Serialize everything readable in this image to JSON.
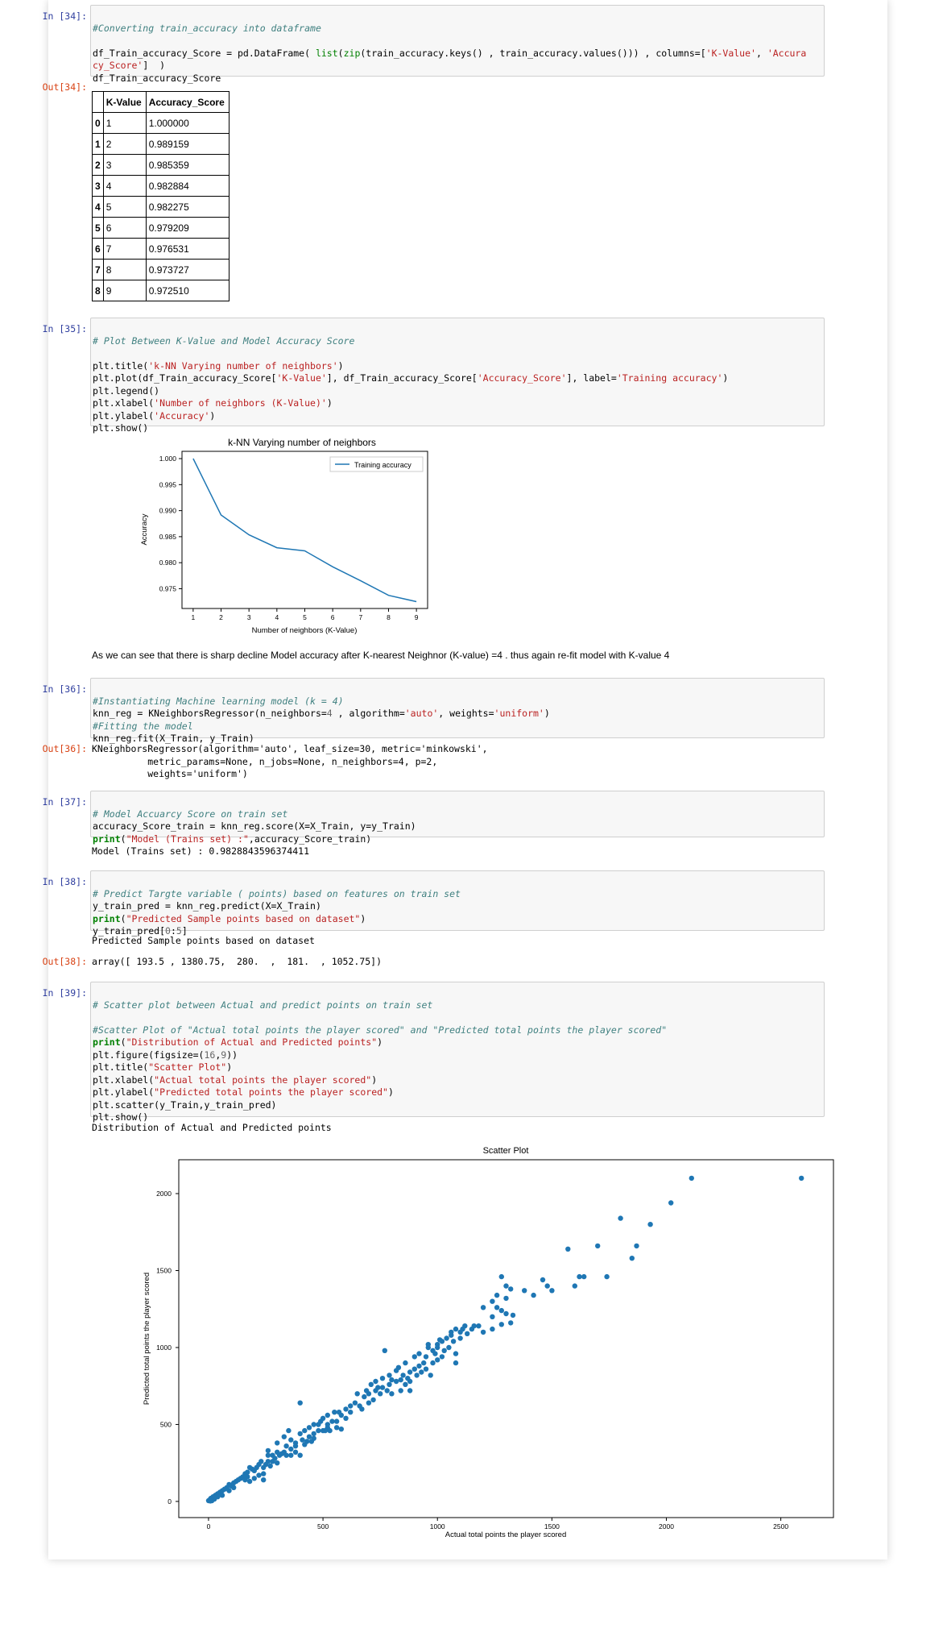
{
  "cells": {
    "c34": {
      "prompt_in": "In [34]:",
      "prompt_out": "Out[34]:",
      "comment": "#Converting train_accuracy into dataframe",
      "code_line2a": "df_Train_accuracy_Score = pd.DataFrame( ",
      "code_line2b": "list",
      "code_line2c": "(",
      "code_line2d": "zip",
      "code_line2e": "(train_accuracy.keys() , train_accuracy.values())) , columns=[",
      "code_line2f": "'K-Value'",
      "code_line2g": ", ",
      "code_line2h": "'Accura",
      "code_line3a": "cy_Score'",
      "code_line3b": "]  )",
      "code_line4": "df_Train_accuracy_Score",
      "table": {
        "headers": [
          "",
          "K-Value",
          "Accuracy_Score"
        ],
        "rows": [
          [
            "0",
            "1",
            "1.000000"
          ],
          [
            "1",
            "2",
            "0.989159"
          ],
          [
            "2",
            "3",
            "0.985359"
          ],
          [
            "3",
            "4",
            "0.982884"
          ],
          [
            "4",
            "5",
            "0.982275"
          ],
          [
            "5",
            "6",
            "0.979209"
          ],
          [
            "6",
            "7",
            "0.976531"
          ],
          [
            "7",
            "8",
            "0.973727"
          ],
          [
            "8",
            "9",
            "0.972510"
          ]
        ]
      }
    },
    "c35": {
      "prompt_in": "In [35]:",
      "comment": "# Plot Between K-Value and Model Accuracy Score",
      "l1a": "plt.title(",
      "l1b": "'k-NN Varying number of neighbors'",
      "l1c": ")",
      "l2a": "plt.plot(df_Train_accuracy_Score[",
      "l2b": "'K-Value'",
      "l2c": "], df_Train_accuracy_Score[",
      "l2d": "'Accuracy_Score'",
      "l2e": "], label=",
      "l2f": "'Training accuracy'",
      "l2g": ")",
      "l3": "plt.legend()",
      "l4a": "plt.xlabel(",
      "l4b": "'Number of neighbors (K-Value)'",
      "l4c": ")",
      "l5a": "plt.ylabel(",
      "l5b": "'Accuracy'",
      "l5c": ")",
      "l6": "plt.show()"
    },
    "md": {
      "text": "As we can see that there is sharp decline Model accuracy after K-nearest Neighnor (K-value) =4 . thus again re-fit model with K-value 4"
    },
    "c36": {
      "prompt_in": "In [36]:",
      "prompt_out": "Out[36]:",
      "comment1": "#Instantiating Machine learning model (k = 4)",
      "l2a": "knn_reg = KNeighborsRegressor(n_neighbors=",
      "l2b": "4",
      "l2c": " , algorithm=",
      "l2d": "'auto'",
      "l2e": ", weights=",
      "l2f": "'uniform'",
      "l2g": ")",
      "comment2": "#Fitting the model",
      "l4": "knn_reg.fit(X_Train, y_Train)",
      "out1": "KNeighborsRegressor(algorithm='auto', leaf_size=30, metric='minkowski',",
      "out2": "          metric_params=None, n_jobs=None, n_neighbors=4, p=2,",
      "out3": "          weights='uniform')"
    },
    "c37": {
      "prompt_in": "In [37]:",
      "comment": "# Model Accuarcy Score on train set",
      "l2": "accuracy_Score_train = knn_reg.score(X=X_Train, y=y_Train)",
      "l3a": "print",
      "l3b": "(",
      "l3c": "\"Model (Trains set) :\"",
      "l3d": ",accuracy_Score_train)",
      "out": "Model (Trains set) : 0.9828843596374411"
    },
    "c38": {
      "prompt_in": "In [38]:",
      "prompt_out": "Out[38]:",
      "comment": "# Predict Targte variable ( points) based on features on train set",
      "l2": "y_train_pred = knn_reg.predict(X=X_Train)",
      "l3a": "print",
      "l3b": "(",
      "l3c": "\"Predicted Sample points based on dataset\"",
      "l3d": ")",
      "l4a": "y_train_pred[",
      "l4b": "0",
      "l4c": ":",
      "l4d": "5",
      "l4e": "]",
      "stdout": "Predicted Sample points based on dataset",
      "out": "array([ 193.5 , 1380.75,  280.  ,  181.  , 1052.75])"
    },
    "c39": {
      "prompt_in": "In [39]:",
      "comment1": "# Scatter plot between Actual and predict points on train set",
      "comment2": "#Scatter Plot of \"Actual total points the player scored\" and \"Predicted total points the player scored\"",
      "l3a": "print",
      "l3b": "(",
      "l3c": "\"Distribution of Actual and Predicted points\"",
      "l3d": ")",
      "l4a": "plt.figure(figsize=(",
      "l4b": "16",
      "l4c": ",",
      "l4d": "9",
      "l4e": "))",
      "l5a": "plt.title(",
      "l5b": "\"Scatter Plot\"",
      "l5c": ")",
      "l6a": "plt.xlabel(",
      "l6b": "\"Actual total points the player scored\"",
      "l6c": ")",
      "l7a": "plt.ylabel(",
      "l7b": "\"Predicted total points the player scored\"",
      "l7c": ")",
      "l8": "plt.scatter(y_Train,y_train_pred)",
      "l9": "plt.show()",
      "stdout": "Distribution of Actual and Predicted points"
    }
  },
  "chart_data": [
    {
      "type": "line",
      "title": "k-NN Varying number of neighbors",
      "xlabel": "Number of neighbors (K-Value)",
      "ylabel": "Accuracy",
      "x": [
        1,
        2,
        3,
        4,
        5,
        6,
        7,
        8,
        9
      ],
      "series": [
        {
          "name": "Training accuracy",
          "values": [
            1.0,
            0.989159,
            0.985359,
            0.982884,
            0.982275,
            0.979209,
            0.976531,
            0.973727,
            0.97251
          ],
          "color": "#1f77b4"
        }
      ],
      "xticks": [
        "1",
        "2",
        "3",
        "4",
        "5",
        "6",
        "7",
        "8",
        "9"
      ],
      "yticks": [
        "0.975",
        "0.980",
        "0.985",
        "0.990",
        "0.995",
        "1.000"
      ],
      "xlim": [
        0.6,
        9.4
      ],
      "ylim": [
        0.9712,
        1.0014
      ],
      "legend": "top-right",
      "grid": false
    },
    {
      "type": "scatter",
      "title": "Scatter Plot",
      "xlabel": "Actual total points the player scored",
      "ylabel": "Predicted total points the player scored",
      "xticks": [
        "0",
        "500",
        "1000",
        "1500",
        "2000",
        "2500"
      ],
      "yticks": [
        "0",
        "500",
        "1000",
        "1500",
        "2000"
      ],
      "xlim": [
        -130,
        2730
      ],
      "ylim": [
        -105,
        2220
      ],
      "color": "#1f77b4",
      "grid": false,
      "points": [
        [
          2590,
          2100
        ],
        [
          2110,
          2100
        ],
        [
          2020,
          1940
        ],
        [
          1800,
          1840
        ],
        [
          1930,
          1800
        ],
        [
          1700,
          1660
        ],
        [
          1870,
          1660
        ],
        [
          1570,
          1640
        ],
        [
          1850,
          1580
        ],
        [
          1740,
          1460
        ],
        [
          1620,
          1460
        ],
        [
          1640,
          1460
        ],
        [
          1460,
          1440
        ],
        [
          1480,
          1400
        ],
        [
          1600,
          1400
        ],
        [
          1500,
          1370
        ],
        [
          1380,
          1370
        ],
        [
          1420,
          1340
        ],
        [
          1280,
          1460
        ],
        [
          1300,
          1400
        ],
        [
          1320,
          1380
        ],
        [
          1260,
          1340
        ],
        [
          1240,
          1300
        ],
        [
          1300,
          1320
        ],
        [
          1200,
          1260
        ],
        [
          1260,
          1260
        ],
        [
          1280,
          1240
        ],
        [
          1300,
          1220
        ],
        [
          1330,
          1210
        ],
        [
          1240,
          1200
        ],
        [
          1320,
          1160
        ],
        [
          1180,
          1140
        ],
        [
          1200,
          1100
        ],
        [
          1280,
          1150
        ],
        [
          1240,
          1120
        ],
        [
          1120,
          1140
        ],
        [
          1150,
          1120
        ],
        [
          1100,
          1100
        ],
        [
          1080,
          1120
        ],
        [
          1130,
          1090
        ],
        [
          1060,
          1080
        ],
        [
          1040,
          1060
        ],
        [
          1070,
          1040
        ],
        [
          1020,
          1040
        ],
        [
          1000,
          1020
        ],
        [
          1100,
          1060
        ],
        [
          1000,
          1000
        ],
        [
          960,
          1000
        ],
        [
          980,
          980
        ],
        [
          1030,
          980
        ],
        [
          1050,
          1000
        ],
        [
          990,
          960
        ],
        [
          1020,
          940
        ],
        [
          950,
          940
        ],
        [
          1000,
          920
        ],
        [
          1080,
          960
        ],
        [
          980,
          900
        ],
        [
          940,
          900
        ],
        [
          920,
          880
        ],
        [
          1080,
          900
        ],
        [
          900,
          860
        ],
        [
          880,
          840
        ],
        [
          930,
          840
        ],
        [
          950,
          860
        ],
        [
          970,
          820
        ],
        [
          910,
          820
        ],
        [
          870,
          800
        ],
        [
          850,
          820
        ],
        [
          840,
          790
        ],
        [
          880,
          780
        ],
        [
          860,
          760
        ],
        [
          800,
          790
        ],
        [
          820,
          780
        ],
        [
          790,
          760
        ],
        [
          760,
          740
        ],
        [
          780,
          720
        ],
        [
          800,
          700
        ],
        [
          840,
          720
        ],
        [
          730,
          720
        ],
        [
          750,
          700
        ],
        [
          770,
          980
        ],
        [
          700,
          700
        ],
        [
          680,
          680
        ],
        [
          720,
          660
        ],
        [
          740,
          740
        ],
        [
          880,
          720
        ],
        [
          640,
          640
        ],
        [
          660,
          620
        ],
        [
          700,
          640
        ],
        [
          670,
          600
        ],
        [
          620,
          620
        ],
        [
          600,
          600
        ],
        [
          620,
          580
        ],
        [
          580,
          560
        ],
        [
          600,
          540
        ],
        [
          570,
          580
        ],
        [
          560,
          520
        ],
        [
          520,
          560
        ],
        [
          540,
          520
        ],
        [
          550,
          580
        ],
        [
          500,
          540
        ],
        [
          480,
          500
        ],
        [
          520,
          480
        ],
        [
          500,
          460
        ],
        [
          480,
          460
        ],
        [
          460,
          440
        ],
        [
          440,
          480
        ],
        [
          440,
          420
        ],
        [
          420,
          460
        ],
        [
          410,
          400
        ],
        [
          400,
          440
        ],
        [
          460,
          500
        ],
        [
          490,
          520
        ],
        [
          520,
          500
        ],
        [
          510,
          460
        ],
        [
          560,
          480
        ],
        [
          580,
          470
        ],
        [
          530,
          460
        ],
        [
          400,
          640
        ],
        [
          380,
          380
        ],
        [
          380,
          360
        ],
        [
          360,
          400
        ],
        [
          340,
          360
        ],
        [
          360,
          340
        ],
        [
          330,
          320
        ],
        [
          340,
          300
        ],
        [
          300,
          320
        ],
        [
          310,
          300
        ],
        [
          280,
          300
        ],
        [
          290,
          280
        ],
        [
          260,
          300
        ],
        [
          280,
          260
        ],
        [
          260,
          260
        ],
        [
          250,
          240
        ],
        [
          230,
          260
        ],
        [
          240,
          220
        ],
        [
          220,
          240
        ],
        [
          210,
          220
        ],
        [
          200,
          200
        ],
        [
          190,
          210
        ],
        [
          180,
          220
        ],
        [
          170,
          190
        ],
        [
          160,
          180
        ],
        [
          170,
          160
        ],
        [
          150,
          160
        ],
        [
          140,
          150
        ],
        [
          130,
          140
        ],
        [
          120,
          130
        ],
        [
          110,
          120
        ],
        [
          100,
          100
        ],
        [
          90,
          110
        ],
        [
          80,
          90
        ],
        [
          70,
          80
        ],
        [
          60,
          70
        ],
        [
          50,
          60
        ],
        [
          40,
          50
        ],
        [
          30,
          40
        ],
        [
          20,
          30
        ],
        [
          10,
          20
        ],
        [
          5,
          10
        ],
        [
          0,
          5
        ],
        [
          360,
          300
        ],
        [
          420,
          370
        ],
        [
          460,
          410
        ],
        [
          320,
          310
        ],
        [
          380,
          320
        ],
        [
          400,
          300
        ],
        [
          430,
          390
        ],
        [
          300,
          250
        ],
        [
          270,
          230
        ],
        [
          240,
          180
        ],
        [
          220,
          170
        ],
        [
          200,
          150
        ],
        [
          240,
          140
        ],
        [
          160,
          140
        ],
        [
          180,
          130
        ],
        [
          110,
          90
        ],
        [
          90,
          70
        ],
        [
          60,
          40
        ],
        [
          40,
          30
        ],
        [
          25,
          15
        ],
        [
          15,
          5
        ],
        [
          8,
          3
        ],
        [
          650,
          700
        ],
        [
          690,
          720
        ],
        [
          710,
          760
        ],
        [
          730,
          780
        ],
        [
          760,
          800
        ],
        [
          790,
          820
        ],
        [
          820,
          850
        ],
        [
          830,
          870
        ],
        [
          860,
          900
        ],
        [
          900,
          940
        ],
        [
          920,
          960
        ],
        [
          960,
          1020
        ],
        [
          1010,
          1050
        ],
        [
          1060,
          1100
        ],
        [
          1110,
          1120
        ],
        [
          1160,
          1140
        ],
        [
          330,
          420
        ],
        [
          300,
          380
        ],
        [
          350,
          460
        ],
        [
          260,
          330
        ],
        [
          450,
          390
        ]
      ]
    }
  ]
}
